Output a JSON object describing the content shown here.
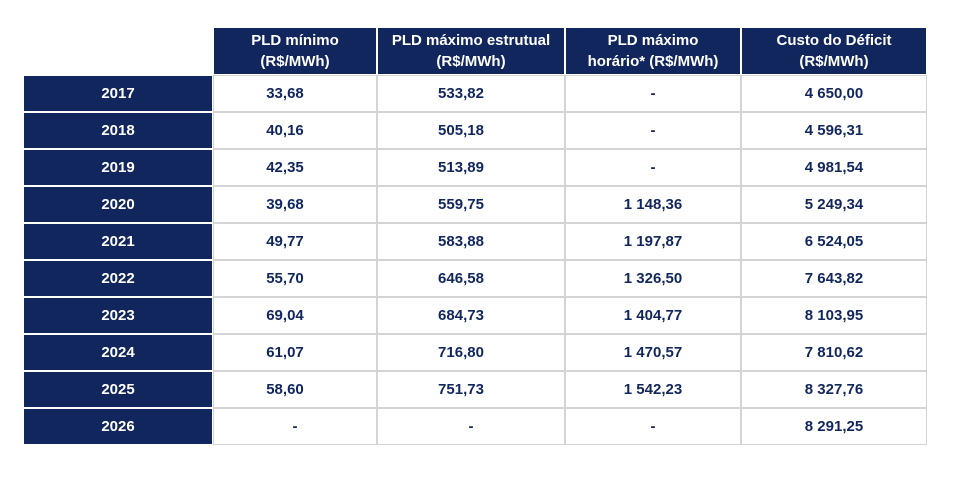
{
  "table": {
    "headers": [
      {
        "line1": "PLD mínimo",
        "line2": "(R$/MWh)"
      },
      {
        "line1": "PLD máximo estrutual",
        "line2": "(R$/MWh)"
      },
      {
        "line1": "PLD máximo",
        "line2": "horário* (R$/MWh)"
      },
      {
        "line1": "Custo do Déficit",
        "line2": "(R$/MWh)"
      }
    ],
    "rows": [
      {
        "year": "2017",
        "pld_min": "33,68",
        "pld_max_estr": "533,82",
        "pld_max_hor": "-",
        "custo_deficit": "4 650,00"
      },
      {
        "year": "2018",
        "pld_min": "40,16",
        "pld_max_estr": "505,18",
        "pld_max_hor": "-",
        "custo_deficit": "4 596,31"
      },
      {
        "year": "2019",
        "pld_min": "42,35",
        "pld_max_estr": "513,89",
        "pld_max_hor": "-",
        "custo_deficit": "4 981,54"
      },
      {
        "year": "2020",
        "pld_min": "39,68",
        "pld_max_estr": "559,75",
        "pld_max_hor": "1 148,36",
        "custo_deficit": "5 249,34"
      },
      {
        "year": "2021",
        "pld_min": "49,77",
        "pld_max_estr": "583,88",
        "pld_max_hor": "1 197,87",
        "custo_deficit": "6 524,05"
      },
      {
        "year": "2022",
        "pld_min": "55,70",
        "pld_max_estr": "646,58",
        "pld_max_hor": "1 326,50",
        "custo_deficit": "7 643,82"
      },
      {
        "year": "2023",
        "pld_min": "69,04",
        "pld_max_estr": "684,73",
        "pld_max_hor": "1 404,77",
        "custo_deficit": "8 103,95"
      },
      {
        "year": "2024",
        "pld_min": "61,07",
        "pld_max_estr": "716,80",
        "pld_max_hor": "1 470,57",
        "custo_deficit": "7 810,62"
      },
      {
        "year": "2025",
        "pld_min": "58,60",
        "pld_max_estr": "751,73",
        "pld_max_hor": "1 542,23",
        "custo_deficit": "8 327,76"
      },
      {
        "year": "2026",
        "pld_min": "-",
        "pld_max_estr": "-",
        "pld_max_hor": "-",
        "custo_deficit": "8 291,25"
      }
    ]
  },
  "colors": {
    "header_bg": "#12265e",
    "value_text": "#12265e",
    "grid": "#d4d4d4"
  }
}
